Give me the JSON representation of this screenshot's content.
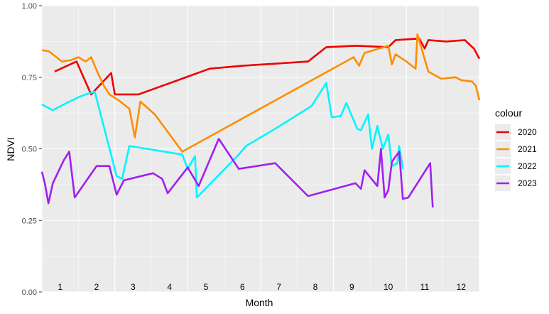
{
  "chart_data": {
    "type": "line",
    "xlabel": "Month",
    "ylabel": "NDVI",
    "xlim": [
      0,
      12
    ],
    "ylim": [
      0,
      1
    ],
    "y_ticks": [
      "0.00",
      "0.25",
      "0.50",
      "0.75",
      "1.00"
    ],
    "month_labels": [
      "1",
      "2",
      "3",
      "4",
      "5",
      "6",
      "7",
      "8",
      "9",
      "10",
      "11",
      "12"
    ],
    "grid": true,
    "legend_position": "right",
    "legend_title": "colour",
    "background": "#EBEBEB",
    "series": [
      {
        "name": "2020",
        "color": "#EE0000",
        "points": [
          [
            0.35,
            0.77
          ],
          [
            0.95,
            0.805
          ],
          [
            1.35,
            0.69
          ],
          [
            1.9,
            0.765
          ],
          [
            2.0,
            0.69
          ],
          [
            2.65,
            0.69
          ],
          [
            4.6,
            0.78
          ],
          [
            5.5,
            0.79
          ],
          [
            7.3,
            0.805
          ],
          [
            7.8,
            0.855
          ],
          [
            8.6,
            0.86
          ],
          [
            9.5,
            0.855
          ],
          [
            9.7,
            0.88
          ],
          [
            10.35,
            0.885
          ],
          [
            10.5,
            0.85
          ],
          [
            10.6,
            0.88
          ],
          [
            11.1,
            0.875
          ],
          [
            11.6,
            0.88
          ],
          [
            11.85,
            0.85
          ],
          [
            12.0,
            0.815
          ]
        ]
      },
      {
        "name": "2021",
        "color": "#FF8C00",
        "points": [
          [
            0.0,
            0.845
          ],
          [
            0.2,
            0.84
          ],
          [
            0.55,
            0.805
          ],
          [
            0.8,
            0.81
          ],
          [
            1.0,
            0.82
          ],
          [
            1.2,
            0.805
          ],
          [
            1.35,
            0.82
          ],
          [
            1.55,
            0.76
          ],
          [
            1.7,
            0.72
          ],
          [
            1.85,
            0.69
          ],
          [
            2.1,
            0.67
          ],
          [
            2.4,
            0.64
          ],
          [
            2.55,
            0.54
          ],
          [
            2.7,
            0.665
          ],
          [
            3.1,
            0.62
          ],
          [
            3.85,
            0.49
          ],
          [
            8.55,
            0.82
          ],
          [
            8.7,
            0.79
          ],
          [
            8.85,
            0.835
          ],
          [
            9.5,
            0.86
          ],
          [
            9.6,
            0.795
          ],
          [
            9.7,
            0.83
          ],
          [
            10.0,
            0.805
          ],
          [
            10.25,
            0.78
          ],
          [
            10.3,
            0.9
          ],
          [
            10.6,
            0.77
          ],
          [
            10.95,
            0.745
          ],
          [
            11.35,
            0.75
          ],
          [
            11.5,
            0.74
          ],
          [
            11.8,
            0.735
          ],
          [
            11.9,
            0.72
          ],
          [
            12.0,
            0.67
          ]
        ]
      },
      {
        "name": "2022",
        "color": "#00F5FF",
        "points": [
          [
            0.0,
            0.655
          ],
          [
            0.15,
            0.645
          ],
          [
            0.3,
            0.635
          ],
          [
            0.6,
            0.655
          ],
          [
            1.0,
            0.68
          ],
          [
            1.2,
            0.69
          ],
          [
            1.45,
            0.7
          ],
          [
            2.05,
            0.405
          ],
          [
            2.2,
            0.395
          ],
          [
            2.4,
            0.51
          ],
          [
            3.85,
            0.48
          ],
          [
            4.0,
            0.43
          ],
          [
            4.2,
            0.475
          ],
          [
            4.25,
            0.33
          ],
          [
            5.4,
            0.48
          ],
          [
            5.6,
            0.51
          ],
          [
            6.4,
            0.57
          ],
          [
            7.4,
            0.65
          ],
          [
            7.8,
            0.73
          ],
          [
            7.95,
            0.61
          ],
          [
            8.2,
            0.615
          ],
          [
            8.35,
            0.66
          ],
          [
            8.45,
            0.63
          ],
          [
            8.65,
            0.57
          ],
          [
            8.75,
            0.565
          ],
          [
            8.95,
            0.62
          ],
          [
            9.05,
            0.5
          ],
          [
            9.2,
            0.58
          ],
          [
            9.35,
            0.5
          ],
          [
            9.5,
            0.55
          ],
          [
            9.6,
            0.44
          ],
          [
            9.75,
            0.45
          ],
          [
            9.8,
            0.51
          ],
          [
            9.9,
            0.43
          ]
        ]
      },
      {
        "name": "2023",
        "color": "#A020F0",
        "points": [
          [
            0.0,
            0.42
          ],
          [
            0.08,
            0.38
          ],
          [
            0.18,
            0.31
          ],
          [
            0.3,
            0.38
          ],
          [
            0.6,
            0.46
          ],
          [
            0.75,
            0.49
          ],
          [
            0.9,
            0.33
          ],
          [
            1.5,
            0.44
          ],
          [
            1.85,
            0.44
          ],
          [
            2.05,
            0.34
          ],
          [
            2.25,
            0.39
          ],
          [
            3.05,
            0.415
          ],
          [
            3.3,
            0.395
          ],
          [
            3.45,
            0.345
          ],
          [
            4.0,
            0.435
          ],
          [
            4.3,
            0.37
          ],
          [
            4.85,
            0.535
          ],
          [
            5.4,
            0.43
          ],
          [
            6.4,
            0.45
          ],
          [
            7.3,
            0.335
          ],
          [
            8.6,
            0.38
          ],
          [
            8.75,
            0.36
          ],
          [
            8.85,
            0.425
          ],
          [
            9.2,
            0.37
          ],
          [
            9.3,
            0.5
          ],
          [
            9.4,
            0.33
          ],
          [
            9.5,
            0.355
          ],
          [
            9.6,
            0.455
          ],
          [
            9.8,
            0.49
          ],
          [
            9.9,
            0.325
          ],
          [
            10.05,
            0.33
          ],
          [
            10.65,
            0.45
          ],
          [
            10.72,
            0.295
          ]
        ]
      }
    ]
  }
}
